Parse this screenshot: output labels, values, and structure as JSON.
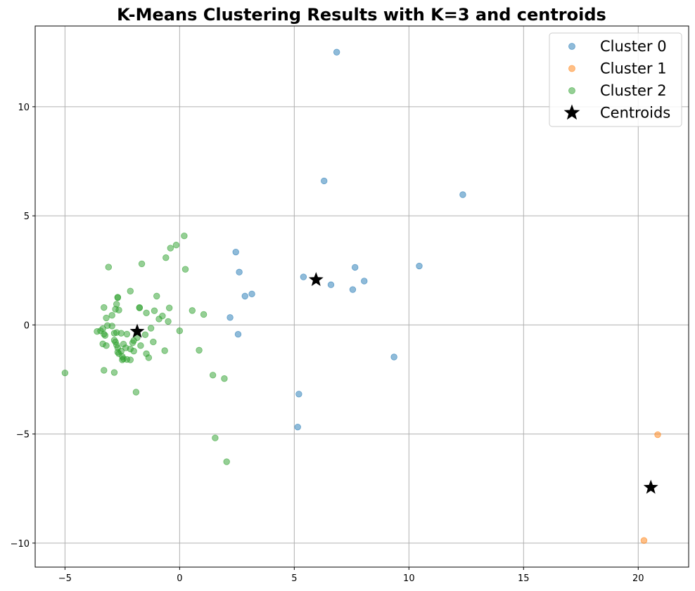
{
  "chart_data": {
    "type": "scatter",
    "title": "K-Means Clustering Results with K=3 and centroids",
    "xlabel": "",
    "ylabel": "",
    "xlim": [
      -6.3,
      22.2
    ],
    "ylim": [
      -11.1,
      13.7
    ],
    "xticks": [
      -5,
      0,
      5,
      10,
      15,
      20
    ],
    "yticks": [
      -10,
      -5,
      0,
      5,
      10
    ],
    "grid": true,
    "legend_position": "top-right",
    "series": [
      {
        "name": "Cluster 0",
        "color": "#1f77b4",
        "points": [
          [
            6.85,
            12.5
          ],
          [
            6.3,
            6.6
          ],
          [
            12.35,
            5.97
          ],
          [
            2.45,
            3.34
          ],
          [
            2.6,
            2.42
          ],
          [
            10.45,
            2.7
          ],
          [
            7.65,
            2.64
          ],
          [
            5.4,
            2.2
          ],
          [
            8.05,
            2.01
          ],
          [
            6.6,
            1.84
          ],
          [
            7.55,
            1.62
          ],
          [
            3.15,
            1.42
          ],
          [
            2.85,
            1.32
          ],
          [
            2.2,
            0.34
          ],
          [
            2.55,
            -0.43
          ],
          [
            9.35,
            -1.47
          ],
          [
            5.2,
            -3.17
          ],
          [
            5.15,
            -4.68
          ]
        ]
      },
      {
        "name": "Cluster 1",
        "color": "#ff7f0e",
        "points": [
          [
            20.85,
            -5.03
          ],
          [
            20.25,
            -9.88
          ]
        ]
      },
      {
        "name": "Cluster 2",
        "color": "#2ca02c",
        "points": [
          [
            0.2,
            4.08
          ],
          [
            -0.15,
            3.66
          ],
          [
            -0.4,
            3.52
          ],
          [
            -0.6,
            3.08
          ],
          [
            -1.65,
            2.8
          ],
          [
            -3.1,
            2.65
          ],
          [
            0.25,
            2.55
          ],
          [
            -2.15,
            1.55
          ],
          [
            -1.0,
            1.32
          ],
          [
            -2.7,
            1.27
          ],
          [
            -2.7,
            1.25
          ],
          [
            -2.75,
            0.95
          ],
          [
            -3.3,
            0.8
          ],
          [
            -1.75,
            0.8
          ],
          [
            -1.75,
            0.78
          ],
          [
            -0.45,
            0.78
          ],
          [
            -2.8,
            0.72
          ],
          [
            -2.65,
            0.68
          ],
          [
            -1.1,
            0.65
          ],
          [
            0.55,
            0.66
          ],
          [
            -1.45,
            0.55
          ],
          [
            1.05,
            0.48
          ],
          [
            -2.95,
            0.44
          ],
          [
            -0.75,
            0.41
          ],
          [
            -3.2,
            0.32
          ],
          [
            -0.9,
            0.27
          ],
          [
            -0.5,
            0.16
          ],
          [
            -2.95,
            -0.05
          ],
          [
            -3.15,
            -0.03
          ],
          [
            -1.25,
            -0.15
          ],
          [
            -3.35,
            -0.17
          ],
          [
            -3.45,
            -0.27
          ],
          [
            -3.6,
            -0.3
          ],
          [
            -2.75,
            -0.35
          ],
          [
            -2.85,
            -0.38
          ],
          [
            0.0,
            -0.27
          ],
          [
            -2.55,
            -0.38
          ],
          [
            -3.3,
            -0.42
          ],
          [
            -3.25,
            -0.48
          ],
          [
            -2.3,
            -0.42
          ],
          [
            -1.5,
            -0.45
          ],
          [
            -1.85,
            -0.58
          ],
          [
            -2.0,
            -0.72
          ],
          [
            -2.85,
            -0.7
          ],
          [
            -2.8,
            -0.78
          ],
          [
            -2.05,
            -0.82
          ],
          [
            -1.15,
            -0.78
          ],
          [
            -3.35,
            -0.87
          ],
          [
            -2.75,
            -0.92
          ],
          [
            -3.2,
            -0.95
          ],
          [
            -2.45,
            -0.88
          ],
          [
            -1.7,
            -0.95
          ],
          [
            -2.7,
            -1.05
          ],
          [
            -2.35,
            -1.05
          ],
          [
            -2.15,
            -1.1
          ],
          [
            -2.0,
            -1.2
          ],
          [
            -2.55,
            -1.2
          ],
          [
            -0.65,
            -1.18
          ],
          [
            0.85,
            -1.16
          ],
          [
            -2.7,
            -1.25
          ],
          [
            -2.65,
            -1.32
          ],
          [
            -1.45,
            -1.32
          ],
          [
            -2.5,
            -1.45
          ],
          [
            -1.35,
            -1.5
          ],
          [
            -2.45,
            -1.55
          ],
          [
            -2.3,
            -1.58
          ],
          [
            -2.15,
            -1.6
          ],
          [
            -2.5,
            -1.6
          ],
          [
            -3.3,
            -2.08
          ],
          [
            -2.85,
            -2.18
          ],
          [
            -5.0,
            -2.2
          ],
          [
            1.45,
            -2.3
          ],
          [
            1.95,
            -2.46
          ],
          [
            -1.9,
            -3.08
          ],
          [
            1.55,
            -5.18
          ],
          [
            2.05,
            -6.27
          ]
        ]
      }
    ],
    "centroids": {
      "name": "Centroids",
      "color": "#000000",
      "points": [
        [
          5.95,
          2.07
        ],
        [
          -1.85,
          -0.3
        ],
        [
          20.55,
          -7.45
        ]
      ]
    }
  }
}
